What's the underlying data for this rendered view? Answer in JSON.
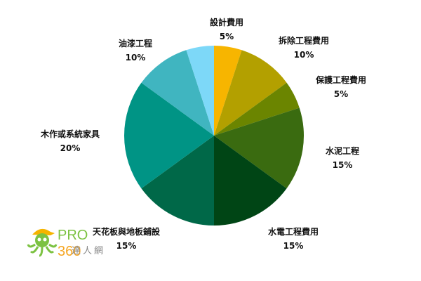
{
  "chart_data": {
    "type": "pie",
    "start": "top",
    "direction": "clockwise",
    "slices": [
      {
        "label": "設計費用",
        "value": 5,
        "value_label": "5%",
        "color": "#f7b500"
      },
      {
        "label": "拆除工程費用",
        "value": 10,
        "value_label": "10%",
        "color": "#b3a000"
      },
      {
        "label": "保護工程費用",
        "value": 5,
        "value_label": "5%",
        "color": "#6b8500"
      },
      {
        "label": "水泥工程",
        "value": 15,
        "value_label": "15%",
        "color": "#3a6b10"
      },
      {
        "label": "水電工程費用",
        "value": 15,
        "value_label": "15%",
        "color": "#004515"
      },
      {
        "label": "天花板與地板鋪設",
        "value": 15,
        "value_label": "15%",
        "color": "#006848"
      },
      {
        "label": "木作或系統家具",
        "value": 20,
        "value_label": "20%",
        "color": "#009485"
      },
      {
        "label": "油漆工程",
        "value": 10,
        "value_label": "10%",
        "color": "#40b5c0"
      },
      {
        "label": "",
        "value": 5,
        "value_label": "",
        "color": "#7dd8f8"
      }
    ]
  },
  "logo": {
    "brand": "PRO",
    "number": "360",
    "subtitle": "達人網"
  }
}
